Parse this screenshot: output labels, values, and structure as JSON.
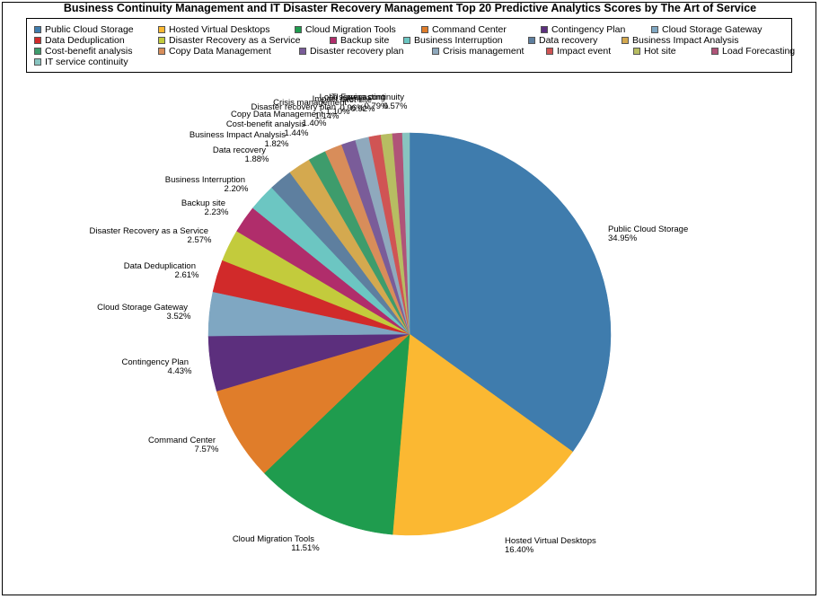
{
  "chart_data": {
    "type": "pie",
    "title": "Business Continuity Management and IT Disaster Recovery Management Top 20 Predictive Analytics Scores by The Art of Service",
    "legend_position": "top",
    "slices": [
      {
        "label": "Public Cloud Storage",
        "value": 34.95,
        "display": "34.95%",
        "color": "#3f7cad"
      },
      {
        "label": "Hosted Virtual Desktops",
        "value": 16.4,
        "display": "16.40%",
        "color": "#fbb832"
      },
      {
        "label": "Cloud Migration Tools",
        "value": 11.51,
        "display": "11.51%",
        "color": "#1f9c4e"
      },
      {
        "label": "Command Center",
        "value": 7.57,
        "display": "7.57%",
        "color": "#e07d2a"
      },
      {
        "label": "Contingency Plan",
        "value": 4.43,
        "display": "4.43%",
        "color": "#5c2f7d"
      },
      {
        "label": "Cloud Storage Gateway",
        "value": 3.52,
        "display": "3.52%",
        "color": "#7fa7c2"
      },
      {
        "label": "Data Deduplication",
        "value": 2.61,
        "display": "2.61%",
        "color": "#d12a2a"
      },
      {
        "label": "Disaster Recovery as a Service",
        "value": 2.57,
        "display": "2.57%",
        "color": "#c3cb3c"
      },
      {
        "label": "Backup site",
        "value": 2.23,
        "display": "2.23%",
        "color": "#b02d6b"
      },
      {
        "label": "Business Interruption",
        "value": 2.2,
        "display": "2.20%",
        "color": "#6cc6c2"
      },
      {
        "label": "Data recovery",
        "value": 1.88,
        "display": "1.88%",
        "color": "#5e7f9f"
      },
      {
        "label": "Business Impact Analysis",
        "value": 1.82,
        "display": "1.82%",
        "color": "#d4a94f"
      },
      {
        "label": "Cost-benefit analysis",
        "value": 1.44,
        "display": "1.44%",
        "color": "#3e9c6c"
      },
      {
        "label": "Copy Data Management",
        "value": 1.4,
        "display": "1.40%",
        "color": "#d88d5a"
      },
      {
        "label": "Disaster recovery plan",
        "value": 1.14,
        "display": "1.14%",
        "color": "#7a5c99"
      },
      {
        "label": "Crisis management",
        "value": 1.1,
        "display": "1.10%",
        "color": "#8fa9bd"
      },
      {
        "label": "Impact event",
        "value": 0.96,
        "display": "0.96%",
        "color": "#d05454"
      },
      {
        "label": "Hot site",
        "value": 0.92,
        "display": "0.92%",
        "color": "#b7bd62"
      },
      {
        "label": "Load Forecasting",
        "value": 0.79,
        "display": "0.79%",
        "color": "#b05478"
      },
      {
        "label": "IT service continuity",
        "value": 0.57,
        "display": "0.57%",
        "color": "#88c4c0"
      }
    ]
  }
}
